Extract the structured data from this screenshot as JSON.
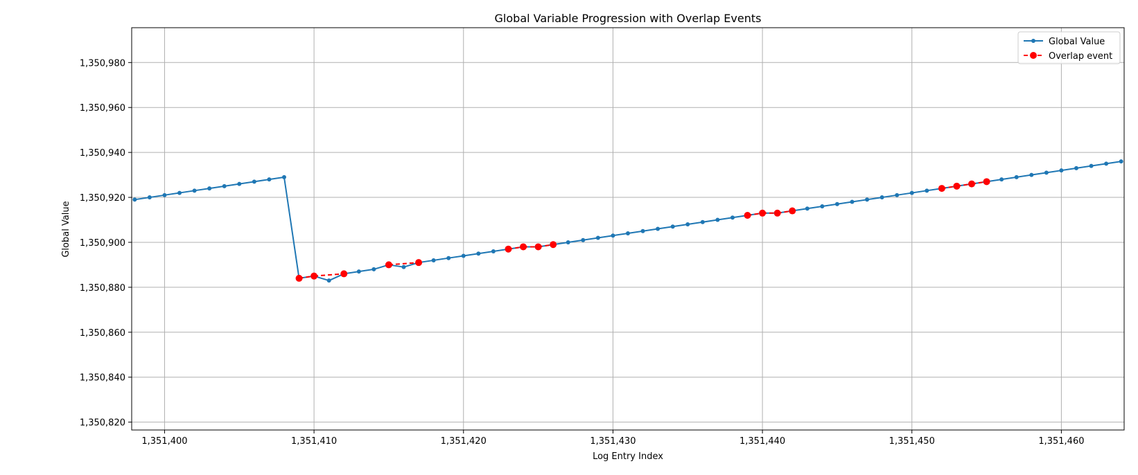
{
  "chart_data": {
    "type": "line",
    "title": "Global Variable Progression with Overlap Events",
    "xlabel": "Log Entry Index",
    "ylabel": "Global Value",
    "xlim": [
      1351397.8,
      1351464.2
    ],
    "ylim": [
      1350816.5,
      1350995.5
    ],
    "xticks": [
      1351400,
      1351410,
      1351420,
      1351430,
      1351440,
      1351450,
      1351460
    ],
    "xtick_labels": [
      "1,351,400",
      "1,351,410",
      "1,351,420",
      "1,351,430",
      "1,351,440",
      "1,351,450",
      "1,351,460"
    ],
    "yticks": [
      1350820,
      1350840,
      1350860,
      1350880,
      1350900,
      1350920,
      1350940,
      1350960,
      1350980
    ],
    "ytick_labels": [
      "1,350,820",
      "1,350,840",
      "1,350,860",
      "1,350,880",
      "1,350,900",
      "1,350,920",
      "1,350,940",
      "1,350,960",
      "1,350,980"
    ],
    "grid": true,
    "legend_position": "top-right",
    "series": [
      {
        "name": "Global Value",
        "color": "#1f77b4",
        "style": "solid-line-dot-markers",
        "x": [
          1351398,
          1351399,
          1351400,
          1351401,
          1351402,
          1351403,
          1351404,
          1351405,
          1351406,
          1351407,
          1351408,
          1351409,
          1351410,
          1351411,
          1351412,
          1351413,
          1351414,
          1351415,
          1351416,
          1351417,
          1351418,
          1351419,
          1351420,
          1351421,
          1351422,
          1351423,
          1351424,
          1351425,
          1351426,
          1351427,
          1351428,
          1351429,
          1351430,
          1351431,
          1351432,
          1351433,
          1351434,
          1351435,
          1351436,
          1351437,
          1351438,
          1351439,
          1351440,
          1351441,
          1351442,
          1351443,
          1351444,
          1351445,
          1351446,
          1351447,
          1351448,
          1351449,
          1351450,
          1351451,
          1351452,
          1351453,
          1351454,
          1351455,
          1351456,
          1351457,
          1351458,
          1351459,
          1351460,
          1351461,
          1351462,
          1351463,
          1351464
        ],
        "y": [
          1350919,
          1350920,
          1350921,
          1350922,
          1350923,
          1350924,
          1350925,
          1350926,
          1350927,
          1350928,
          1350929,
          1350884,
          1350885,
          1350883,
          1350886,
          1350887,
          1350888,
          1350890,
          1350889,
          1350891,
          1350892,
          1350893,
          1350894,
          1350895,
          1350896,
          1350897,
          1350898,
          1350898,
          1350899,
          1350900,
          1350901,
          1350902,
          1350903,
          1350904,
          1350905,
          1350906,
          1350907,
          1350908,
          1350909,
          1350910,
          1350911,
          1350912,
          1350913,
          1350913,
          1350914,
          1350915,
          1350916,
          1350917,
          1350918,
          1350919,
          1350920,
          1350921,
          1350922,
          1350923,
          1350924,
          1350925,
          1350926,
          1350927,
          1350928,
          1350929,
          1350930,
          1350931,
          1350932,
          1350933,
          1350934,
          1350935,
          1350936
        ]
      },
      {
        "name": "Overlap event",
        "color": "#ff0000",
        "style": "dashed-line-circle-markers",
        "x": [
          1351409,
          1351410,
          1351412,
          1351415,
          1351417,
          1351423,
          1351424,
          1351425,
          1351426,
          1351439,
          1351440,
          1351441,
          1351442,
          1351452,
          1351453,
          1351454,
          1351455
        ],
        "y": [
          1350884,
          1350885,
          1350886,
          1350890,
          1350891,
          1350897,
          1350898,
          1350898,
          1350899,
          1350912,
          1350913,
          1350913,
          1350914,
          1350924,
          1350925,
          1350926,
          1350927
        ]
      }
    ]
  }
}
